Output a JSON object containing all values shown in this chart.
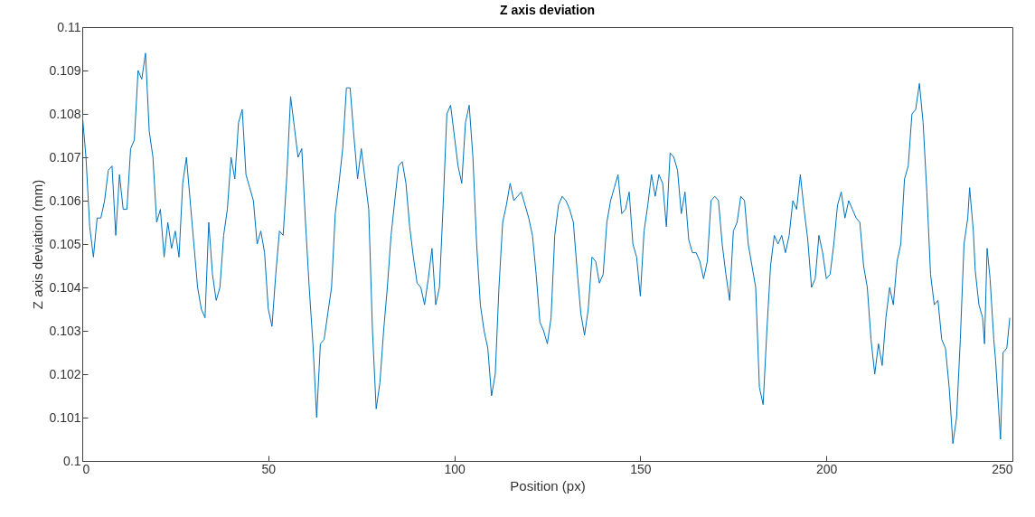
{
  "chart_data": {
    "type": "line",
    "title": "Z axis deviation",
    "xlabel": "Position (px)",
    "ylabel": "Z axis deviation (mm)",
    "xlim": [
      0,
      250
    ],
    "xticks": [
      0,
      50,
      100,
      150,
      200,
      250
    ],
    "ylim": [
      0.1,
      0.11
    ],
    "yticks": [
      0.1,
      0.101,
      0.102,
      0.103,
      0.104,
      0.105,
      0.106,
      0.107,
      0.108,
      0.109,
      0.11
    ],
    "grid": false,
    "marker": "none",
    "line_style": "solid",
    "x": [
      0,
      1,
      2,
      3,
      4,
      5,
      6,
      7,
      8,
      9,
      10,
      11,
      12,
      13,
      14,
      15,
      16,
      17,
      18,
      19,
      20,
      21,
      22,
      23,
      24,
      25,
      26,
      27,
      28,
      29,
      30,
      31,
      32,
      33,
      34,
      35,
      36,
      37,
      38,
      39,
      40,
      41,
      42,
      43,
      44,
      45,
      46,
      47,
      48,
      49,
      50,
      51,
      52,
      53,
      54,
      55,
      56,
      57,
      58,
      59,
      60,
      61,
      62,
      63,
      64,
      65,
      66,
      67,
      68,
      69,
      70,
      71,
      72,
      73,
      74,
      75,
      76,
      77,
      78,
      79,
      80,
      81,
      82,
      83,
      84,
      85,
      86,
      87,
      88,
      89,
      90,
      91,
      92,
      93,
      94,
      95,
      96,
      97,
      98,
      99,
      100,
      101,
      102,
      103,
      104,
      105,
      106,
      107,
      108,
      109,
      110,
      111,
      112,
      113,
      114,
      115,
      116,
      117,
      118,
      119,
      120,
      121,
      122,
      123,
      124,
      125,
      126,
      127,
      128,
      129,
      130,
      131,
      132,
      133,
      134,
      135,
      136,
      137,
      138,
      139,
      140,
      141,
      142,
      143,
      144,
      145,
      146,
      147,
      148,
      149,
      150,
      151,
      152,
      153,
      154,
      155,
      156,
      157,
      158,
      159,
      160,
      161,
      162,
      163,
      164,
      165,
      166,
      167,
      168,
      169,
      170,
      171,
      172,
      173,
      174,
      175,
      176,
      177,
      178,
      179,
      180,
      181,
      182,
      183,
      184,
      185,
      186,
      187,
      188,
      189,
      190,
      191,
      192,
      193,
      194,
      195,
      196,
      197,
      198,
      199,
      200,
      201,
      202,
      203,
      204,
      205,
      206,
      207,
      208,
      209,
      210,
      211,
      212,
      213,
      214,
      215,
      216,
      217,
      218,
      219,
      220,
      221,
      222,
      223,
      224,
      225,
      226,
      227,
      228,
      229,
      230,
      231,
      232,
      233,
      234,
      235,
      236,
      237,
      238,
      238.5,
      239.5,
      240,
      241,
      242,
      242.5,
      243.2,
      244,
      245,
      245.5,
      246.8,
      247.5,
      248.5,
      249.3
    ],
    "series": [
      {
        "color": "#0072bd",
        "values": [
          0.108,
          0.107,
          0.1054,
          0.1047,
          0.1056,
          0.1056,
          0.106,
          0.1067,
          0.1068,
          0.1052,
          0.1066,
          0.1058,
          0.1058,
          0.1072,
          0.1074,
          0.109,
          0.1088,
          0.1094,
          0.1076,
          0.107,
          0.1055,
          0.1058,
          0.1047,
          0.1055,
          0.1049,
          0.1053,
          0.1047,
          0.1064,
          0.107,
          0.106,
          0.105,
          0.104,
          0.1035,
          0.1033,
          0.1055,
          0.1043,
          0.1037,
          0.104,
          0.1052,
          0.1058,
          0.107,
          0.1065,
          0.1078,
          0.1081,
          0.1066,
          0.1063,
          0.106,
          0.105,
          0.1053,
          0.1048,
          0.1035,
          0.1031,
          0.1043,
          0.1053,
          0.1052,
          0.1066,
          0.1084,
          0.1077,
          0.107,
          0.1072,
          0.1055,
          0.104,
          0.1027,
          0.101,
          0.1027,
          0.1028,
          0.1034,
          0.104,
          0.1057,
          0.1064,
          0.1072,
          0.1086,
          0.1086,
          0.1075,
          0.1065,
          0.1072,
          0.1065,
          0.1058,
          0.103,
          0.1012,
          0.1018,
          0.103,
          0.104,
          0.1052,
          0.106,
          0.1068,
          0.1069,
          0.1064,
          0.1054,
          0.1047,
          0.1041,
          0.104,
          0.1036,
          0.1042,
          0.1049,
          0.1036,
          0.104,
          0.1059,
          0.108,
          0.1082,
          0.1075,
          0.1068,
          0.1064,
          0.1078,
          0.1082,
          0.107,
          0.105,
          0.1036,
          0.103,
          0.1026,
          0.1015,
          0.102,
          0.104,
          0.1055,
          0.1059,
          0.1064,
          0.106,
          0.1061,
          0.1062,
          0.1059,
          0.1056,
          0.1052,
          0.1043,
          0.1032,
          0.103,
          0.1027,
          0.1033,
          0.1052,
          0.1059,
          0.1061,
          0.106,
          0.1058,
          0.1055,
          0.1044,
          0.1034,
          0.1029,
          0.1035,
          0.1047,
          0.1046,
          0.1041,
          0.1043,
          0.1055,
          0.106,
          0.1063,
          0.1066,
          0.1057,
          0.1058,
          0.1062,
          0.105,
          0.1047,
          0.1038,
          0.1053,
          0.1059,
          0.1066,
          0.1061,
          0.1066,
          0.1064,
          0.1054,
          0.1071,
          0.107,
          0.1067,
          0.1057,
          0.1062,
          0.1051,
          0.1048,
          0.1048,
          0.1046,
          0.1042,
          0.1046,
          0.106,
          0.1061,
          0.106,
          0.105,
          0.1043,
          0.1037,
          0.1053,
          0.1055,
          0.1061,
          0.106,
          0.105,
          0.1045,
          0.104,
          0.1017,
          0.1013,
          0.103,
          0.1045,
          0.1052,
          0.105,
          0.1052,
          0.1048,
          0.1052,
          0.106,
          0.1058,
          0.1066,
          0.1058,
          0.1051,
          0.104,
          0.1042,
          0.1052,
          0.1048,
          0.1042,
          0.1043,
          0.105,
          0.1059,
          0.1062,
          0.1056,
          0.106,
          0.1058,
          0.1056,
          0.1055,
          0.1045,
          0.104,
          0.1028,
          0.102,
          0.1027,
          0.1022,
          0.1033,
          0.104,
          0.1036,
          0.1046,
          0.105,
          0.1065,
          0.1068,
          0.108,
          0.1081,
          0.1087,
          0.1078,
          0.1062,
          0.1043,
          0.1036,
          0.1037,
          0.1028,
          0.1026,
          0.1017,
          0.1004,
          0.101,
          0.1028,
          0.105,
          0.1056,
          0.1063,
          0.1053,
          0.1044,
          0.1036,
          0.1033,
          0.1027,
          0.1049,
          0.1042,
          0.1028,
          0.1023,
          0.1005,
          0.1025,
          0.1026,
          0.1033
        ]
      }
    ]
  }
}
